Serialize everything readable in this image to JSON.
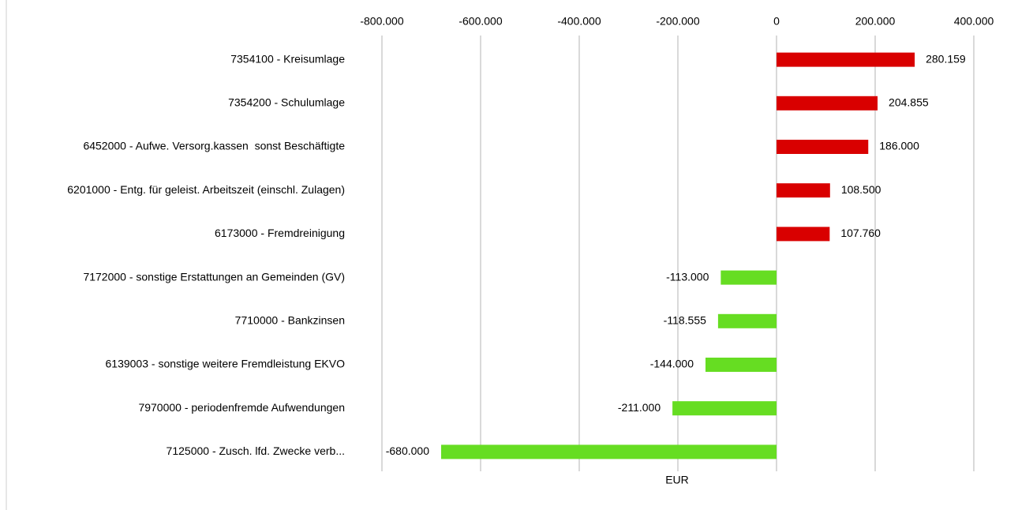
{
  "chart_data": {
    "type": "hbar",
    "categories": [
      "7354100 - Kreisumlage",
      "7354200 - Schulumlage",
      "6452000 - Aufwe. Versorg.kassen  sonst Beschäftigte",
      "6201000 - Entg. für geleist. Arbeitszeit (einschl. Zulagen)",
      "6173000 - Fremdreinigung",
      "7172000 - sonstige Erstattungen an Gemeinden (GV)",
      "7710000 - Bankzinsen",
      "6139003 - sonstige weitere Fremdleistung EKVO",
      "7970000 - periodenfremde Aufwendungen",
      "7125000 - Zusch. lfd. Zwecke verb..."
    ],
    "values": [
      280159,
      204855,
      186000,
      108500,
      107760,
      -113000,
      -118555,
      -144000,
      -211000,
      -680000
    ],
    "value_labels": [
      "280.159",
      "204.855",
      "186.000",
      "108.500",
      "107.760",
      "-113.000",
      "-118.555",
      "-144.000",
      "-211.000",
      "-680.000"
    ],
    "colors": [
      "#d90000",
      "#d90000",
      "#d90000",
      "#d90000",
      "#d90000",
      "#66dd22",
      "#66dd22",
      "#66dd22",
      "#66dd22",
      "#66dd22"
    ],
    "xlabel": "EUR",
    "xlim": [
      -800000,
      400000
    ],
    "xticks": [
      {
        "value": -800000,
        "label": "-800.000"
      },
      {
        "value": -600000,
        "label": "-600.000"
      },
      {
        "value": -400000,
        "label": "-400.000"
      },
      {
        "value": -200000,
        "label": "-200.000"
      },
      0,
      {
        "value": 200000,
        "label": "200.000"
      },
      {
        "value": 400000,
        "label": "400.000"
      }
    ],
    "grid": true
  }
}
